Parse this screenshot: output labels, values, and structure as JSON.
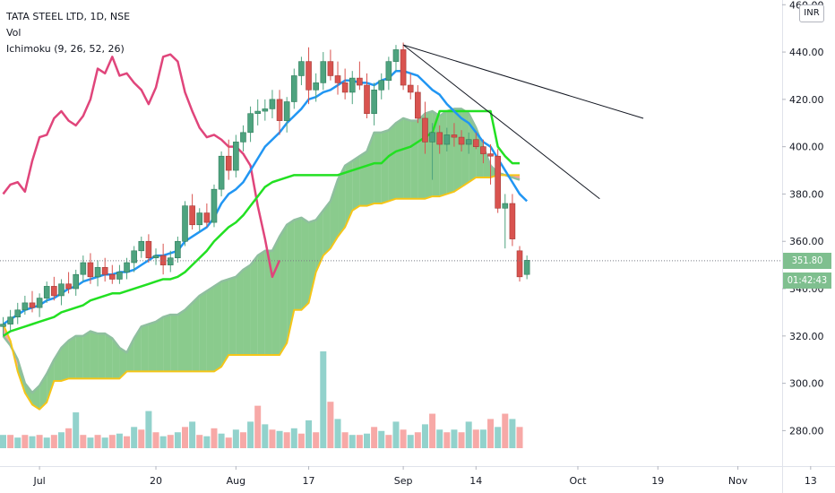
{
  "header": {
    "symbol_line": "TATA STEEL LTD, 1D, NSE",
    "volume_label": "Vol",
    "ichimoku_label": "Ichimoku (9, 26, 52, 26)"
  },
  "currency_badge": "INR",
  "last_price": {
    "value": "351.80",
    "color": "#7fbf8f"
  },
  "countdown": {
    "value": "01:42:43",
    "color": "#7fbf8f"
  },
  "colors": {
    "bull": "#4ea37f",
    "bear": "#d9534f",
    "tenkan": "#2196f3",
    "kijun": "#22e022",
    "chikou": "#e0457b",
    "span_a": "#7fc8a0",
    "span_b": "#f5c518",
    "cloud_bull": "rgba(76,175,80,0.65)",
    "cloud_bear": "rgba(255,82,82,0.55)",
    "vol_up": "rgba(38,166,154,0.5)",
    "vol_down": "rgba(239,83,80,0.5)"
  },
  "chart_data": {
    "type": "candlestick",
    "price_axis": {
      "range": [
        265,
        462
      ],
      "ticks": [
        280,
        300,
        320,
        340,
        360,
        380,
        400,
        420,
        440,
        460
      ],
      "tick_labels": [
        "280.00",
        "300.00",
        "320.00",
        "340.00",
        "360.00",
        "380.00",
        "400.00",
        "420.00",
        "440.00",
        "460.00"
      ]
    },
    "time_axis": {
      "labels": [
        "Jul",
        "20",
        "Aug",
        "17",
        "Sep",
        "14",
        "Oct",
        "19",
        "Nov",
        "13"
      ],
      "label_bar_index": [
        5,
        21,
        32,
        42,
        55,
        65,
        79,
        90,
        101,
        111
      ]
    },
    "candles": [
      {
        "o": 324,
        "h": 328,
        "l": 320,
        "c": 325
      },
      {
        "o": 325,
        "h": 331,
        "l": 322,
        "c": 328
      },
      {
        "o": 328,
        "h": 334,
        "l": 325,
        "c": 331
      },
      {
        "o": 331,
        "h": 337,
        "l": 329,
        "c": 334
      },
      {
        "o": 334,
        "h": 339,
        "l": 330,
        "c": 332
      },
      {
        "o": 332,
        "h": 338,
        "l": 328,
        "c": 336
      },
      {
        "o": 336,
        "h": 343,
        "l": 334,
        "c": 341
      },
      {
        "o": 341,
        "h": 345,
        "l": 335,
        "c": 337
      },
      {
        "o": 337,
        "h": 344,
        "l": 333,
        "c": 342
      },
      {
        "o": 342,
        "h": 347,
        "l": 338,
        "c": 340
      },
      {
        "o": 340,
        "h": 348,
        "l": 337,
        "c": 346
      },
      {
        "o": 346,
        "h": 354,
        "l": 343,
        "c": 351
      },
      {
        "o": 351,
        "h": 355,
        "l": 342,
        "c": 345
      },
      {
        "o": 345,
        "h": 352,
        "l": 341,
        "c": 349
      },
      {
        "o": 349,
        "h": 353,
        "l": 343,
        "c": 346
      },
      {
        "o": 346,
        "h": 350,
        "l": 342,
        "c": 344
      },
      {
        "o": 344,
        "h": 350,
        "l": 342,
        "c": 347
      },
      {
        "o": 347,
        "h": 353,
        "l": 344,
        "c": 351
      },
      {
        "o": 351,
        "h": 358,
        "l": 347,
        "c": 356
      },
      {
        "o": 356,
        "h": 362,
        "l": 353,
        "c": 360
      },
      {
        "o": 360,
        "h": 363,
        "l": 351,
        "c": 353
      },
      {
        "o": 353,
        "h": 357,
        "l": 350,
        "c": 354
      },
      {
        "o": 354,
        "h": 359,
        "l": 346,
        "c": 350
      },
      {
        "o": 350,
        "h": 356,
        "l": 347,
        "c": 353
      },
      {
        "o": 353,
        "h": 362,
        "l": 351,
        "c": 360
      },
      {
        "o": 360,
        "h": 377,
        "l": 358,
        "c": 375
      },
      {
        "o": 375,
        "h": 380,
        "l": 365,
        "c": 367
      },
      {
        "o": 367,
        "h": 374,
        "l": 364,
        "c": 372
      },
      {
        "o": 372,
        "h": 376,
        "l": 366,
        "c": 368
      },
      {
        "o": 368,
        "h": 384,
        "l": 366,
        "c": 382
      },
      {
        "o": 382,
        "h": 398,
        "l": 379,
        "c": 396
      },
      {
        "o": 396,
        "h": 403,
        "l": 386,
        "c": 390
      },
      {
        "o": 390,
        "h": 405,
        "l": 387,
        "c": 402
      },
      {
        "o": 402,
        "h": 409,
        "l": 398,
        "c": 406
      },
      {
        "o": 406,
        "h": 417,
        "l": 402,
        "c": 414
      },
      {
        "o": 414,
        "h": 420,
        "l": 409,
        "c": 415
      },
      {
        "o": 415,
        "h": 420,
        "l": 411,
        "c": 416
      },
      {
        "o": 416,
        "h": 424,
        "l": 412,
        "c": 420
      },
      {
        "o": 420,
        "h": 424,
        "l": 405,
        "c": 411
      },
      {
        "o": 411,
        "h": 421,
        "l": 406,
        "c": 419
      },
      {
        "o": 419,
        "h": 433,
        "l": 416,
        "c": 430
      },
      {
        "o": 430,
        "h": 438,
        "l": 426,
        "c": 436
      },
      {
        "o": 436,
        "h": 442,
        "l": 418,
        "c": 424
      },
      {
        "o": 424,
        "h": 431,
        "l": 419,
        "c": 427
      },
      {
        "o": 427,
        "h": 440,
        "l": 424,
        "c": 436
      },
      {
        "o": 436,
        "h": 441,
        "l": 428,
        "c": 430
      },
      {
        "o": 430,
        "h": 436,
        "l": 422,
        "c": 427
      },
      {
        "o": 427,
        "h": 433,
        "l": 420,
        "c": 423
      },
      {
        "o": 423,
        "h": 432,
        "l": 418,
        "c": 429
      },
      {
        "o": 429,
        "h": 436,
        "l": 424,
        "c": 426
      },
      {
        "o": 426,
        "h": 431,
        "l": 412,
        "c": 414
      },
      {
        "o": 414,
        "h": 427,
        "l": 409,
        "c": 424
      },
      {
        "o": 424,
        "h": 431,
        "l": 420,
        "c": 428
      },
      {
        "o": 428,
        "h": 438,
        "l": 424,
        "c": 436
      },
      {
        "o": 436,
        "h": 443,
        "l": 432,
        "c": 441
      },
      {
        "o": 441,
        "h": 444,
        "l": 424,
        "c": 426
      },
      {
        "o": 426,
        "h": 431,
        "l": 420,
        "c": 423
      },
      {
        "o": 423,
        "h": 426,
        "l": 410,
        "c": 412
      },
      {
        "o": 412,
        "h": 419,
        "l": 397,
        "c": 402
      },
      {
        "o": 402,
        "h": 410,
        "l": 386,
        "c": 406
      },
      {
        "o": 406,
        "h": 409,
        "l": 397,
        "c": 401
      },
      {
        "o": 401,
        "h": 408,
        "l": 398,
        "c": 405
      },
      {
        "o": 405,
        "h": 410,
        "l": 400,
        "c": 404
      },
      {
        "o": 404,
        "h": 407,
        "l": 398,
        "c": 401
      },
      {
        "o": 401,
        "h": 406,
        "l": 397,
        "c": 403
      },
      {
        "o": 403,
        "h": 406,
        "l": 399,
        "c": 400
      },
      {
        "o": 400,
        "h": 403,
        "l": 393,
        "c": 397
      },
      {
        "o": 397,
        "h": 401,
        "l": 384,
        "c": 396
      },
      {
        "o": 396,
        "h": 399,
        "l": 372,
        "c": 374
      },
      {
        "o": 374,
        "h": 380,
        "l": 357,
        "c": 376
      },
      {
        "o": 376,
        "h": 380,
        "l": 358,
        "c": 361
      },
      {
        "o": 356,
        "h": 358,
        "l": 343,
        "c": 345
      },
      {
        "o": 346,
        "h": 354,
        "l": 344,
        "c": 352
      }
    ],
    "tenkan": [
      325,
      327,
      329,
      331,
      332,
      333,
      335,
      336,
      338,
      340,
      341,
      343,
      344,
      345,
      346,
      346,
      347,
      347,
      348,
      350,
      352,
      354,
      354,
      355,
      356,
      360,
      362,
      364,
      366,
      370,
      376,
      380,
      382,
      385,
      390,
      395,
      400,
      403,
      406,
      410,
      413,
      416,
      420,
      421,
      423,
      424,
      426,
      428,
      428,
      427,
      427,
      426,
      428,
      429,
      432,
      432,
      431,
      430,
      427,
      424,
      422,
      418,
      415,
      412,
      410,
      406,
      402,
      400,
      395,
      390,
      385,
      380,
      377
    ],
    "kijun": [
      320,
      322,
      323,
      324,
      325,
      326,
      327,
      328,
      330,
      331,
      332,
      333,
      335,
      336,
      337,
      338,
      338,
      339,
      340,
      341,
      342,
      343,
      344,
      344,
      345,
      347,
      350,
      353,
      356,
      360,
      363,
      366,
      368,
      371,
      375,
      379,
      383,
      385,
      386,
      387,
      388,
      388,
      388,
      388,
      388,
      388,
      388,
      389,
      390,
      391,
      392,
      393,
      393,
      396,
      398,
      399,
      400,
      402,
      404,
      406,
      415,
      415,
      415,
      415,
      415,
      415,
      415,
      415,
      400,
      396,
      393,
      393
    ],
    "chikou": [
      380,
      384,
      385,
      381,
      394,
      404,
      405,
      412,
      415,
      411,
      409,
      413,
      420,
      433,
      431,
      438,
      430,
      431,
      427,
      424,
      418,
      425,
      438,
      439,
      436,
      423,
      415,
      408,
      404,
      405,
      403,
      400,
      400,
      397,
      392,
      375,
      361,
      345,
      352
    ],
    "span_a": [
      320,
      316,
      310,
      300,
      296,
      299,
      304,
      310,
      315,
      318,
      320,
      320,
      322,
      321,
      321,
      319,
      315,
      313,
      319,
      324,
      325,
      326,
      328,
      329,
      329,
      331,
      334,
      337,
      339,
      341,
      343,
      344,
      345,
      348,
      350,
      354,
      356,
      356,
      362,
      367,
      369,
      370,
      368,
      369,
      373,
      377,
      386,
      392,
      394,
      396,
      398,
      406,
      406,
      407,
      410,
      412,
      411,
      411,
      414,
      415,
      413,
      415,
      416,
      416,
      414,
      408,
      400,
      392,
      389,
      388,
      387,
      386
    ],
    "span_b": [
      325,
      318,
      305,
      296,
      291,
      289,
      292,
      301,
      301,
      302,
      302,
      302,
      302,
      302,
      302,
      302,
      302,
      305,
      305,
      305,
      305,
      305,
      305,
      305,
      305,
      305,
      305,
      305,
      305,
      305,
      307,
      312,
      312,
      312,
      312,
      312,
      312,
      312,
      312,
      317,
      331,
      331,
      334,
      347,
      354,
      357,
      362,
      366,
      373,
      375,
      375,
      376,
      376,
      377,
      378,
      378,
      378,
      378,
      378,
      379,
      379,
      380,
      381,
      383,
      385,
      387,
      387,
      387,
      388,
      388,
      388,
      388
    ],
    "volume": [
      [
        1,
        10
      ],
      [
        0,
        10
      ],
      [
        1,
        8
      ],
      [
        0,
        10
      ],
      [
        1,
        9
      ],
      [
        0,
        10
      ],
      [
        1,
        8
      ],
      [
        0,
        10
      ],
      [
        1,
        12
      ],
      [
        0,
        15
      ],
      [
        1,
        27
      ],
      [
        0,
        10
      ],
      [
        1,
        8
      ],
      [
        0,
        10
      ],
      [
        1,
        8
      ],
      [
        0,
        10
      ],
      [
        1,
        11
      ],
      [
        0,
        9
      ],
      [
        1,
        16
      ],
      [
        0,
        14
      ],
      [
        1,
        28
      ],
      [
        0,
        12
      ],
      [
        1,
        9
      ],
      [
        0,
        10
      ],
      [
        1,
        12
      ],
      [
        0,
        16
      ],
      [
        1,
        20
      ],
      [
        0,
        10
      ],
      [
        1,
        9
      ],
      [
        0,
        15
      ],
      [
        1,
        11
      ],
      [
        0,
        8
      ],
      [
        1,
        14
      ],
      [
        0,
        12
      ],
      [
        1,
        20
      ],
      [
        0,
        32
      ],
      [
        1,
        18
      ],
      [
        0,
        14
      ],
      [
        1,
        13
      ],
      [
        0,
        12
      ],
      [
        1,
        15
      ],
      [
        0,
        11
      ],
      [
        1,
        21
      ],
      [
        0,
        12
      ],
      [
        1,
        73
      ],
      [
        0,
        35
      ],
      [
        1,
        22
      ],
      [
        0,
        12
      ],
      [
        1,
        10
      ],
      [
        0,
        10
      ],
      [
        1,
        11
      ],
      [
        0,
        16
      ],
      [
        1,
        13
      ],
      [
        0,
        10
      ],
      [
        1,
        20
      ],
      [
        0,
        14
      ],
      [
        1,
        10
      ],
      [
        0,
        12
      ],
      [
        1,
        18
      ],
      [
        0,
        26
      ],
      [
        1,
        14
      ],
      [
        0,
        12
      ],
      [
        1,
        14
      ],
      [
        0,
        12
      ],
      [
        1,
        20
      ],
      [
        0,
        14
      ],
      [
        1,
        14
      ],
      [
        0,
        22
      ],
      [
        1,
        16
      ],
      [
        0,
        26
      ],
      [
        1,
        22
      ],
      [
        0,
        16
      ]
    ],
    "volume_max": 73,
    "trendlines": [
      {
        "from": [
          55,
          443
        ],
        "to": [
          88,
          412
        ]
      },
      {
        "from": [
          55,
          443
        ],
        "to": [
          82,
          378
        ]
      }
    ]
  }
}
